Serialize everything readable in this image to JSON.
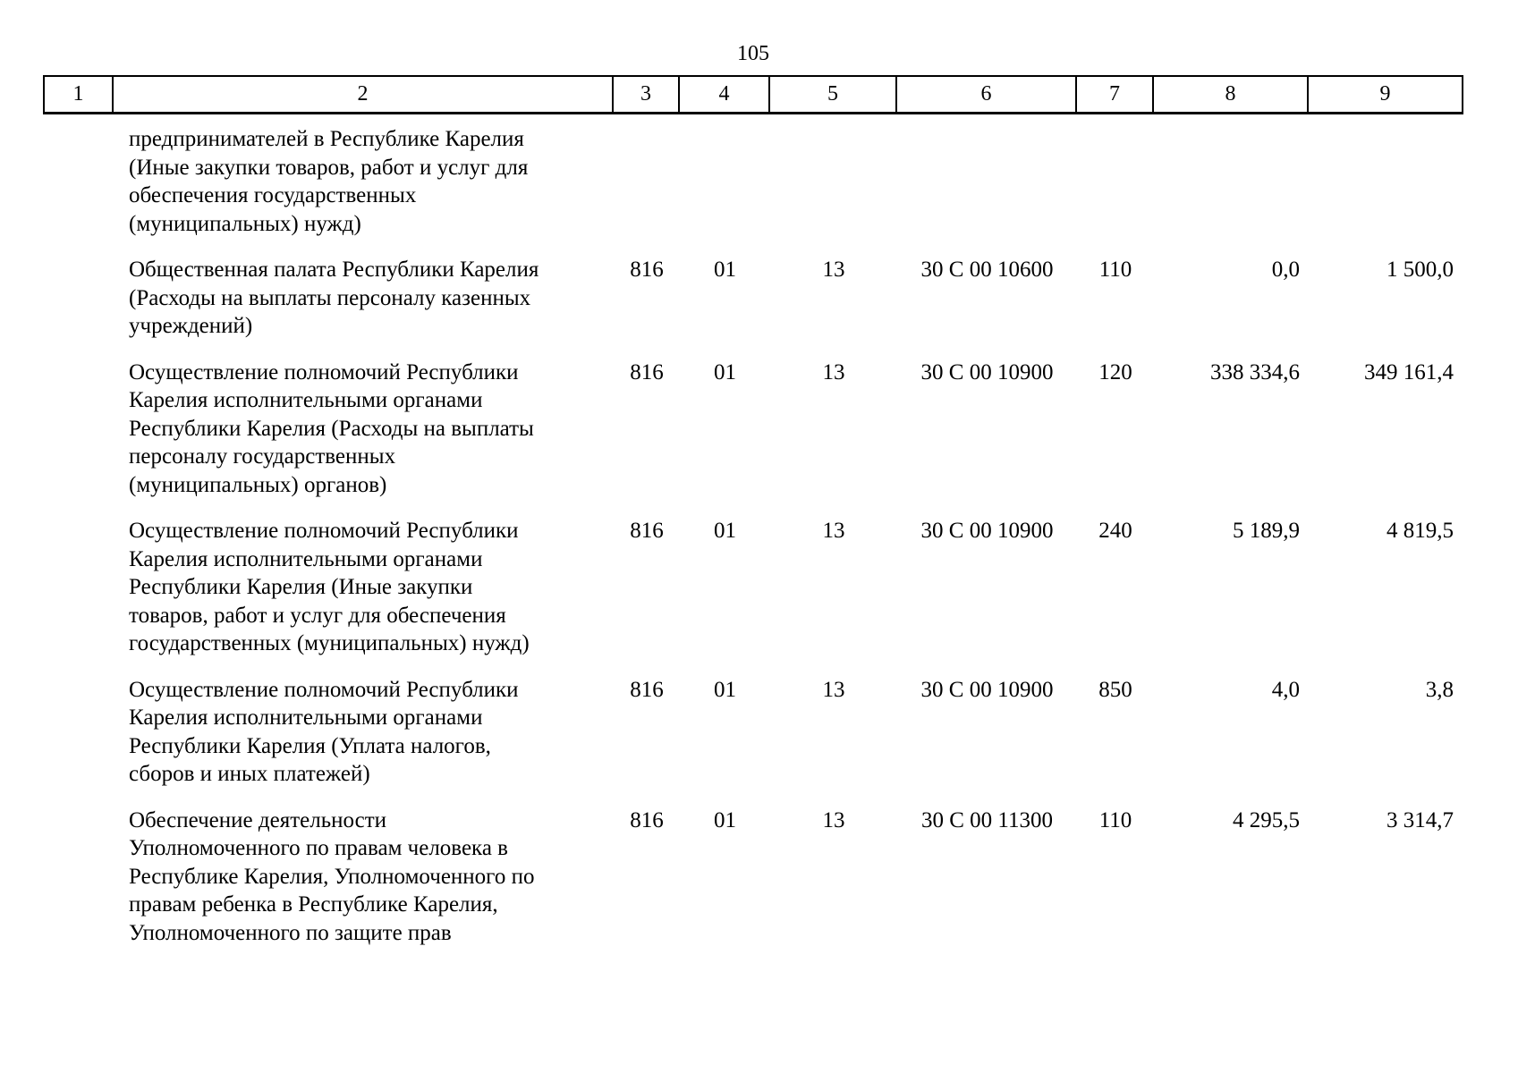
{
  "page": {
    "number": "105"
  },
  "table": {
    "header": [
      "1",
      "2",
      "3",
      "4",
      "5",
      "6",
      "7",
      "8",
      "9"
    ],
    "rows": [
      {
        "name": "предпринимателей в Республике Карелия\n(Иные закупки товаров, работ и услуг для\nобеспечения государственных\n(муниципальных) нужд)",
        "col3": "",
        "col4": "",
        "col5": "",
        "col6": "",
        "col7": "",
        "col8": "",
        "col9": ""
      },
      {
        "name": "Общественная палата Республики Карелия\n(Расходы на выплаты персоналу казенных\nучреждений)",
        "col3": "816",
        "col4": "01",
        "col5": "13",
        "col6": "30 С 00 10600",
        "col7": "110",
        "col8": "0,0",
        "col9": "1 500,0"
      },
      {
        "name": "Осуществление полномочий Республики\nКарелия исполнительными органами\nРеспублики Карелия (Расходы на выплаты\nперсоналу государственных\n(муниципальных) органов)",
        "col3": "816",
        "col4": "01",
        "col5": "13",
        "col6": "30 С 00 10900",
        "col7": "120",
        "col8": "338 334,6",
        "col9": "349 161,4"
      },
      {
        "name": "Осуществление полномочий Республики\nКарелия исполнительными органами\nРеспублики Карелия (Иные закупки\nтоваров, работ и услуг для обеспечения\nгосударственных (муниципальных) нужд)",
        "col3": "816",
        "col4": "01",
        "col5": "13",
        "col6": "30 С 00 10900",
        "col7": "240",
        "col8": "5 189,9",
        "col9": "4 819,5"
      },
      {
        "name": "Осуществление полномочий Республики\nКарелия исполнительными органами\nРеспублики Карелия (Уплата налогов,\nсборов и иных платежей)",
        "col3": "816",
        "col4": "01",
        "col5": "13",
        "col6": "30 С 00 10900",
        "col7": "850",
        "col8": "4,0",
        "col9": "3,8"
      },
      {
        "name": "Обеспечение деятельности\nУполномоченного по правам человека в\nРеспублике Карелия, Уполномоченного по\nправам ребенка в Республике Карелия,\nУполномоченного по защите прав",
        "col3": "816",
        "col4": "01",
        "col5": "13",
        "col6": "30 С 00 11300",
        "col7": "110",
        "col8": "4 295,5",
        "col9": "3 314,7"
      }
    ]
  }
}
